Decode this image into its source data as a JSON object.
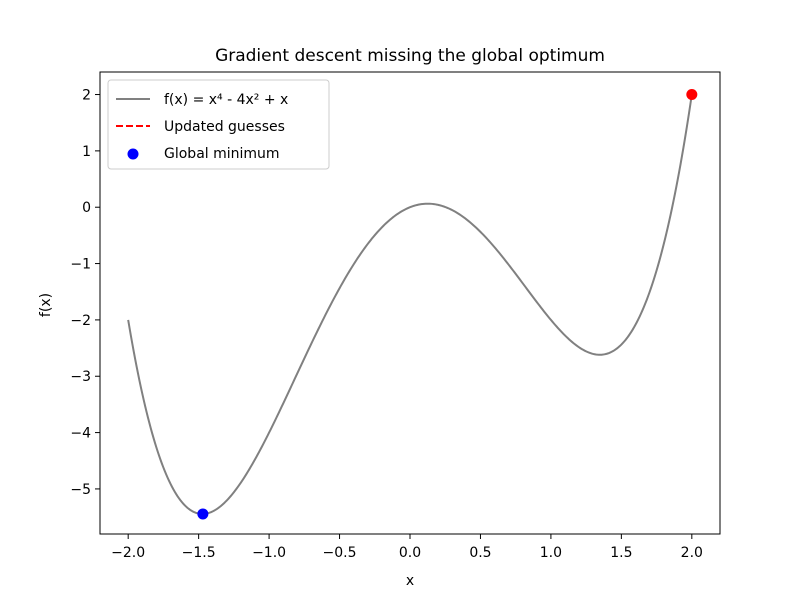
{
  "chart_data": {
    "type": "line",
    "title": "Gradient descent missing the global optimum",
    "xlabel": "x",
    "ylabel": "f(x)",
    "xlim": [
      -2.2,
      2.2
    ],
    "ylim": [
      -5.8,
      2.4
    ],
    "x_ticks": [
      -2.0,
      -1.5,
      -1.0,
      -0.5,
      0.0,
      0.5,
      1.0,
      1.5,
      2.0
    ],
    "x_tick_labels": [
      "−2.0",
      "−1.5",
      "−1.0",
      "−0.5",
      "0.0",
      "0.5",
      "1.0",
      "1.5",
      "2.0"
    ],
    "y_ticks": [
      -5,
      -4,
      -3,
      -2,
      -1,
      0,
      1,
      2
    ],
    "y_tick_labels": [
      "−5",
      "−4",
      "−3",
      "−2",
      "−1",
      "0",
      "1",
      "2"
    ],
    "legend": {
      "placement": "upper-left",
      "entries": [
        {
          "label": "f(x) = x⁴ - 4x² + x",
          "style": "line",
          "color": "#808080"
        },
        {
          "label": "Updated guesses",
          "style": "dashed",
          "color": "#ff0000"
        },
        {
          "label": "Global minimum",
          "style": "marker",
          "color": "#0000ff"
        }
      ]
    },
    "series": [
      {
        "function": "x^4 - 4x^2 + x",
        "x": [
          -2.0,
          -1.9,
          -1.8,
          -1.7,
          -1.6,
          -1.5,
          -1.47,
          -1.4,
          -1.3,
          -1.2,
          -1.1,
          -1.0,
          -0.9,
          -0.8,
          -0.7,
          -0.6,
          -0.5,
          -0.4,
          -0.3,
          -0.2,
          -0.1,
          0.0,
          0.1,
          0.13,
          0.2,
          0.3,
          0.4,
          0.5,
          0.6,
          0.7,
          0.8,
          0.9,
          1.0,
          1.1,
          1.2,
          1.3,
          1.35,
          1.4,
          1.5,
          1.6,
          1.7,
          1.8,
          1.9,
          2.0
        ],
        "y": [
          -2.0,
          -3.311,
          -4.262,
          -4.888,
          -5.286,
          -5.438,
          -5.444,
          -5.398,
          -5.204,
          -4.886,
          -4.476,
          -4.0,
          -3.584,
          -3.15,
          -2.72,
          -2.31,
          -1.938,
          -1.614,
          -0.652,
          -0.358,
          -0.14,
          0.0,
          0.06,
          0.063,
          0.042,
          -0.052,
          -0.214,
          -0.438,
          -0.714,
          -1.03,
          -1.35,
          -1.584,
          -2.0,
          -2.276,
          -2.486,
          -2.596,
          -2.605,
          -2.598,
          -2.438,
          -2.09,
          -1.508,
          -0.665,
          0.472,
          2.0
        ],
        "color": "#808080"
      }
    ],
    "markers": [
      {
        "name": "Global minimum",
        "x": -1.47,
        "y": -5.444,
        "color": "#0000ff"
      },
      {
        "name": "Updated guesses",
        "x": 2.0,
        "y": 2.0,
        "color": "#ff0000"
      }
    ]
  }
}
